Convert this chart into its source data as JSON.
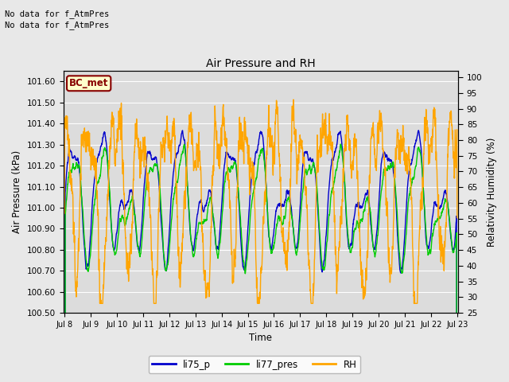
{
  "title": "Air Pressure and RH",
  "xlabel": "Time",
  "ylabel_left": "Air Pressure (kPa)",
  "ylabel_right": "Relativity Humidity (%)",
  "annotation1": "No data for f_AtmPres",
  "annotation2": "No data for f_AtmPres",
  "box_label": "BC_met",
  "ylim_left": [
    100.5,
    101.65
  ],
  "ylim_right": [
    25,
    102
  ],
  "yticks_left": [
    100.5,
    100.6,
    100.7,
    100.8,
    100.9,
    101.0,
    101.1,
    101.2,
    101.3,
    101.4,
    101.5,
    101.6
  ],
  "yticks_right": [
    25,
    30,
    35,
    40,
    45,
    50,
    55,
    60,
    65,
    70,
    75,
    80,
    85,
    90,
    95,
    100
  ],
  "color_blue": "#0000CC",
  "color_green": "#00CC00",
  "color_orange": "#FFA500",
  "color_box_bg": "#FFFFCC",
  "color_box_edge": "#880000",
  "background_color": "#E8E8E8",
  "xstart": 8,
  "xend": 23,
  "xtick_labels": [
    "Jul 8",
    "Jul 9",
    "Jul 10",
    "Jul 11",
    "Jul 12",
    "Jul 13",
    "Jul 14",
    "Jul 15",
    "Jul 16",
    "Jul 17",
    "Jul 18",
    "Jul 19",
    "Jul 20",
    "Jul 21",
    "Jul 22",
    "Jul 23"
  ]
}
